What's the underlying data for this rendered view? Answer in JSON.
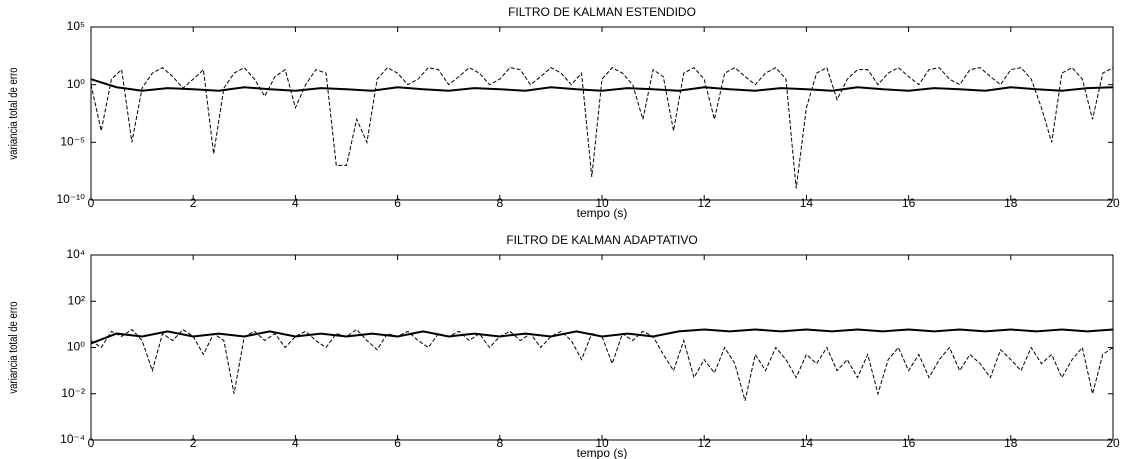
{
  "chart_data": [
    {
      "type": "line",
      "title": "FILTRO DE KALMAN ESTENDIDO",
      "xlabel": "tempo (s)",
      "ylabel": "variancia total de erro",
      "log_y": true,
      "xlim": [
        0,
        20
      ],
      "xticks": [
        0,
        2,
        4,
        6,
        8,
        10,
        12,
        14,
        16,
        18,
        20
      ],
      "ylim": [
        1e-10,
        100000
      ],
      "yticks": [
        {
          "value": 1e-10,
          "label": "10⁻¹⁰"
        },
        {
          "value": 1e-05,
          "label": "10⁻⁵"
        },
        {
          "value": 1,
          "label": "10⁰"
        },
        {
          "value": 100000,
          "label": "10⁵"
        }
      ],
      "series": [
        {
          "color": "#000000",
          "linestyle": "dashed",
          "x": [
            0,
            0.2,
            0.4,
            0.6,
            0.8,
            1,
            1.2,
            1.4,
            1.6,
            1.8,
            2,
            2.2,
            2.4,
            2.6,
            2.8,
            3,
            3.2,
            3.4,
            3.6,
            3.8,
            4,
            4.2,
            4.4,
            4.6,
            4.8,
            5,
            5.2,
            5.4,
            5.6,
            5.8,
            6,
            6.2,
            6.4,
            6.6,
            6.8,
            7,
            7.2,
            7.4,
            7.6,
            7.8,
            8,
            8.2,
            8.4,
            8.6,
            8.8,
            9,
            9.2,
            9.4,
            9.6,
            9.8,
            10,
            10.2,
            10.4,
            10.6,
            10.8,
            11,
            11.2,
            11.4,
            11.6,
            11.8,
            12,
            12.2,
            12.4,
            12.6,
            12.8,
            13,
            13.2,
            13.4,
            13.6,
            13.8,
            14,
            14.2,
            14.4,
            14.6,
            14.8,
            15,
            15.2,
            15.4,
            15.6,
            15.8,
            16,
            16.2,
            16.4,
            16.6,
            16.8,
            17,
            17.2,
            17.4,
            17.6,
            17.8,
            18,
            18.2,
            18.4,
            18.6,
            18.8,
            19,
            19.2,
            19.4,
            19.6,
            19.8,
            20
          ],
          "values": [
            1,
            0.0001,
            3,
            20,
            1e-05,
            0.5,
            10,
            30,
            5,
            0.5,
            3,
            20,
            1e-06,
            0.5,
            10,
            30,
            3,
            0.1,
            5,
            20,
            0.01,
            1,
            20,
            10,
            1e-07,
            1e-07,
            0.001,
            1e-05,
            3,
            30,
            10,
            1,
            3,
            30,
            20,
            1,
            5,
            30,
            10,
            1,
            3,
            30,
            20,
            1,
            5,
            30,
            10,
            1,
            10,
            1e-08,
            3,
            30,
            10,
            1,
            0.001,
            20,
            5,
            0.0001,
            10,
            30,
            3,
            0.001,
            10,
            30,
            5,
            1,
            10,
            30,
            3,
            1e-09,
            0.01,
            10,
            30,
            0.05,
            3,
            20,
            20,
            1,
            10,
            30,
            5,
            1,
            20,
            30,
            3,
            1,
            20,
            30,
            5,
            1,
            20,
            30,
            3,
            0.01,
            1e-05,
            10,
            30,
            3,
            0.001,
            10,
            30
          ]
        },
        {
          "color": "#000000",
          "linestyle": "solid",
          "x": [
            0,
            0.5,
            1,
            1.5,
            2,
            2.5,
            3,
            3.5,
            4,
            4.5,
            5,
            5.5,
            6,
            6.5,
            7,
            7.5,
            8,
            8.5,
            9,
            9.5,
            10,
            10.5,
            11,
            11.5,
            12,
            12.5,
            13,
            13.5,
            14,
            14.5,
            15,
            15.5,
            16,
            16.5,
            17,
            17.5,
            18,
            18.5,
            19,
            19.5,
            20
          ],
          "values": [
            3,
            0.6,
            0.3,
            0.5,
            0.4,
            0.3,
            0.6,
            0.4,
            0.3,
            0.5,
            0.4,
            0.3,
            0.6,
            0.4,
            0.3,
            0.5,
            0.4,
            0.3,
            0.6,
            0.4,
            0.3,
            0.5,
            0.4,
            0.3,
            0.6,
            0.4,
            0.3,
            0.5,
            0.4,
            0.3,
            0.6,
            0.4,
            0.3,
            0.5,
            0.4,
            0.3,
            0.6,
            0.4,
            0.3,
            0.5,
            0.6
          ]
        }
      ]
    },
    {
      "type": "line",
      "title": "FILTRO DE KALMAN ADAPTATIVO",
      "xlabel": "tempo (s)",
      "ylabel": "variancia total de erro",
      "log_y": true,
      "xlim": [
        0,
        20
      ],
      "xticks": [
        0,
        2,
        4,
        6,
        8,
        10,
        12,
        14,
        16,
        18,
        20
      ],
      "ylim": [
        0.0001,
        10000
      ],
      "yticks": [
        {
          "value": 0.0001,
          "label": "10⁻⁴"
        },
        {
          "value": 0.01,
          "label": "10⁻²"
        },
        {
          "value": 1,
          "label": "10⁰"
        },
        {
          "value": 100,
          "label": "10²"
        },
        {
          "value": 10000,
          "label": "10⁴"
        }
      ],
      "series": [
        {
          "color": "#000000",
          "linestyle": "dashed",
          "x": [
            0,
            0.2,
            0.4,
            0.6,
            0.8,
            1,
            1.2,
            1.4,
            1.6,
            1.8,
            2,
            2.2,
            2.4,
            2.6,
            2.8,
            3,
            3.2,
            3.4,
            3.6,
            3.8,
            4,
            4.2,
            4.4,
            4.6,
            4.8,
            5,
            5.2,
            5.4,
            5.6,
            5.8,
            6,
            6.2,
            6.4,
            6.6,
            6.8,
            7,
            7.2,
            7.4,
            7.6,
            7.8,
            8,
            8.2,
            8.4,
            8.6,
            8.8,
            9,
            9.2,
            9.4,
            9.6,
            9.8,
            10,
            10.2,
            10.4,
            10.6,
            10.8,
            11,
            11.2,
            11.4,
            11.6,
            11.8,
            12,
            12.2,
            12.4,
            12.6,
            12.8,
            13,
            13.2,
            13.4,
            13.6,
            13.8,
            14,
            14.2,
            14.4,
            14.6,
            14.8,
            15,
            15.2,
            15.4,
            15.6,
            15.8,
            16,
            16.2,
            16.4,
            16.6,
            16.8,
            17,
            17.2,
            17.4,
            17.6,
            17.8,
            18,
            18.2,
            18.4,
            18.6,
            18.8,
            19,
            19.2,
            19.4,
            19.6,
            19.8,
            20
          ],
          "values": [
            2,
            1,
            5,
            3,
            6,
            2,
            0.1,
            4,
            2,
            6,
            3,
            0.5,
            4,
            2,
            0.01,
            3,
            5,
            2,
            4,
            1,
            3,
            5,
            2,
            1,
            4,
            3,
            6,
            2,
            0.8,
            4,
            3,
            5,
            2,
            1,
            4,
            3,
            5,
            2,
            4,
            1,
            3,
            5,
            2,
            4,
            1,
            3,
            5,
            2,
            0.3,
            4,
            3,
            0.2,
            4,
            2,
            5,
            3,
            0.5,
            0.1,
            2,
            0.05,
            0.3,
            0.08,
            1,
            0.2,
            0.005,
            0.5,
            0.1,
            1,
            0.3,
            0.05,
            0.5,
            0.2,
            1,
            0.1,
            0.3,
            0.05,
            0.5,
            0.01,
            0.3,
            1,
            0.1,
            0.5,
            0.05,
            0.3,
            1,
            0.1,
            0.5,
            0.2,
            0.05,
            0.8,
            0.3,
            0.1,
            1,
            0.2,
            0.5,
            0.05,
            0.3,
            1,
            0.01,
            0.5,
            1
          ]
        },
        {
          "color": "#000000",
          "linestyle": "solid",
          "x": [
            0,
            0.5,
            1,
            1.5,
            2,
            2.5,
            3,
            3.5,
            4,
            4.5,
            5,
            5.5,
            6,
            6.5,
            7,
            7.5,
            8,
            8.5,
            9,
            9.5,
            10,
            10.5,
            11,
            11.5,
            12,
            12.5,
            13,
            13.5,
            14,
            14.5,
            15,
            15.5,
            16,
            16.5,
            17,
            17.5,
            18,
            18.5,
            19,
            19.5,
            20
          ],
          "values": [
            1.5,
            4,
            3,
            5,
            3,
            4,
            3,
            5,
            3,
            4,
            3,
            4,
            3,
            5,
            3,
            4,
            3,
            4,
            3,
            5,
            3,
            4,
            3,
            5,
            6,
            5,
            6,
            5,
            6,
            5,
            6,
            5,
            6,
            5,
            6,
            5,
            6,
            5,
            6,
            5,
            6
          ]
        }
      ]
    }
  ]
}
